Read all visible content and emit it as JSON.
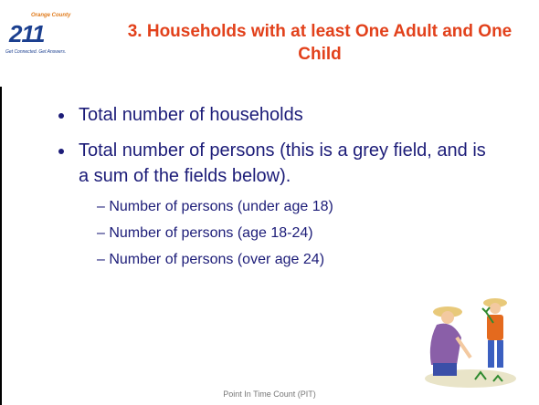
{
  "logo": {
    "county": "Orange County",
    "number": "211",
    "tagline": "Get Connected. Get Answers."
  },
  "title": "3. Households with at least One Adult and One Child",
  "bullets": [
    {
      "text": "Total number of households",
      "subitems": []
    },
    {
      "text": "Total number of persons (this is a grey field, and is a sum of the fields below).",
      "subitems": [
        "Number of persons (under age 18)",
        "Number of persons (age 18-24)",
        "Number of persons (over age 24)"
      ]
    }
  ],
  "footer": "Point In Time Count (PIT)"
}
